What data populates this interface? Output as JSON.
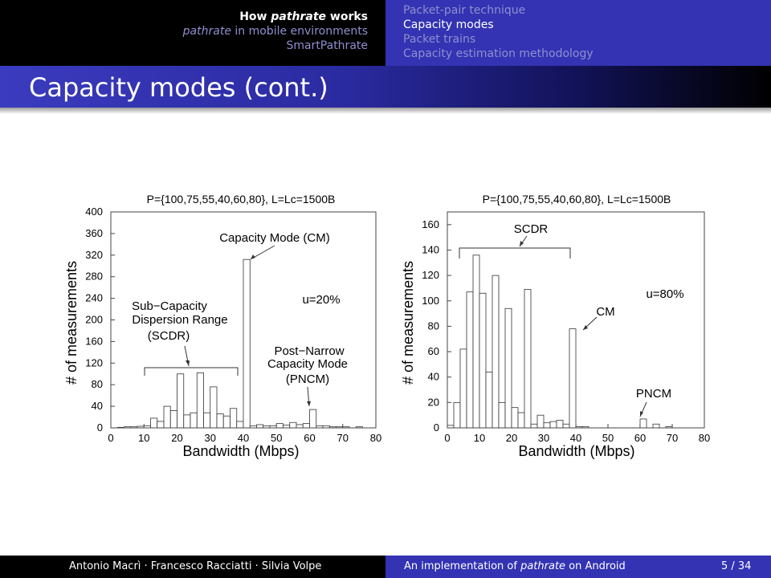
{
  "nav": {
    "sections": [
      {
        "pre": "How ",
        "em": "pathrate",
        "post": " works",
        "active": true
      },
      {
        "pre": "",
        "em": "pathrate",
        "post": " in mobile environments",
        "active": false
      },
      {
        "pre": "SmartPathrate",
        "em": "",
        "post": "",
        "active": false
      }
    ],
    "subsections": [
      {
        "label": "Packet-pair technique",
        "active": false
      },
      {
        "label": "Capacity modes",
        "active": true
      },
      {
        "label": "Packet trains",
        "active": false
      },
      {
        "label": "Capacity estimation methodology",
        "active": false
      }
    ]
  },
  "slide_title": "Capacity modes (cont.)",
  "footer": {
    "authors": "Antonio Macrì · Francesco Racciatti · Silvia Volpe",
    "title_pre": "An implementation of ",
    "title_em": "pathrate",
    "title_post": " on Android",
    "page": "5 / 34"
  },
  "colors": {
    "header_left_bg": "#000000",
    "header_right_bg": "#3333b3",
    "title_bar": "#2a2aa0",
    "nav_inactive": "#8f8fd0",
    "nav_active": "#ffffff",
    "bar_stroke": "#333333"
  },
  "chart_data": [
    {
      "type": "bar",
      "title": "P={100,75,55,40,60,80}, L=Lc=1500B",
      "xlabel": "Bandwidth (Mbps)",
      "ylabel": "# of measurements",
      "xlim": [
        0,
        80
      ],
      "ylim": [
        0,
        400
      ],
      "xticks": [
        "0",
        "10",
        "20",
        "30",
        "40",
        "50",
        "60",
        "70",
        "80"
      ],
      "yticks": [
        "0",
        "40",
        "80",
        "120",
        "160",
        "200",
        "240",
        "280",
        "320",
        "360",
        "400"
      ],
      "bin_width": 2,
      "x": [
        1,
        3,
        5,
        7,
        9,
        11,
        13,
        15,
        17,
        19,
        21,
        23,
        25,
        27,
        29,
        31,
        33,
        35,
        37,
        39,
        41,
        43,
        45,
        47,
        49,
        51,
        53,
        55,
        57,
        59,
        61,
        63,
        65,
        67,
        69,
        71,
        73,
        75,
        77,
        79
      ],
      "values": [
        0,
        1,
        2,
        2,
        3,
        4,
        18,
        12,
        40,
        32,
        100,
        24,
        28,
        102,
        28,
        76,
        26,
        22,
        36,
        12,
        312,
        4,
        6,
        4,
        4,
        8,
        5,
        10,
        6,
        8,
        34,
        4,
        4,
        2,
        2,
        2,
        0,
        2,
        0,
        0
      ],
      "annotations": [
        "Capacity Mode (CM)",
        "u=20%",
        "Sub−Capacity",
        "Dispersion Range",
        "(SCDR)",
        "Post−Narrow",
        "Capacity Mode",
        "(PNCM)"
      ]
    },
    {
      "type": "bar",
      "title": "P={100,75,55,40,60,80}, L=Lc=1500B",
      "xlabel": "Bandwidth (Mbps)",
      "ylabel": "# of measurements",
      "xlim": [
        0,
        80
      ],
      "ylim": [
        0,
        170
      ],
      "xticks": [
        "0",
        "10",
        "20",
        "30",
        "40",
        "50",
        "60",
        "70",
        "80"
      ],
      "yticks": [
        "0",
        "20",
        "40",
        "60",
        "80",
        "100",
        "120",
        "140",
        "160"
      ],
      "bin_width": 2,
      "x": [
        1,
        3,
        5,
        7,
        9,
        11,
        13,
        15,
        17,
        19,
        21,
        23,
        25,
        27,
        29,
        31,
        33,
        35,
        37,
        39,
        41,
        43,
        45,
        47,
        49,
        51,
        53,
        55,
        57,
        59,
        61,
        63,
        65,
        67,
        69,
        71,
        73,
        75,
        77,
        79
      ],
      "values": [
        2,
        20,
        62,
        107,
        136,
        106,
        44,
        120,
        20,
        94,
        16,
        12,
        109,
        3,
        10,
        4,
        5,
        6,
        3,
        78,
        1,
        1,
        0,
        0,
        0,
        0,
        0,
        0,
        0,
        0,
        7,
        0,
        3,
        0,
        1,
        0,
        0,
        0,
        0,
        0
      ],
      "annotations": [
        "SCDR",
        "u=80%",
        "CM",
        "PNCM"
      ]
    }
  ]
}
